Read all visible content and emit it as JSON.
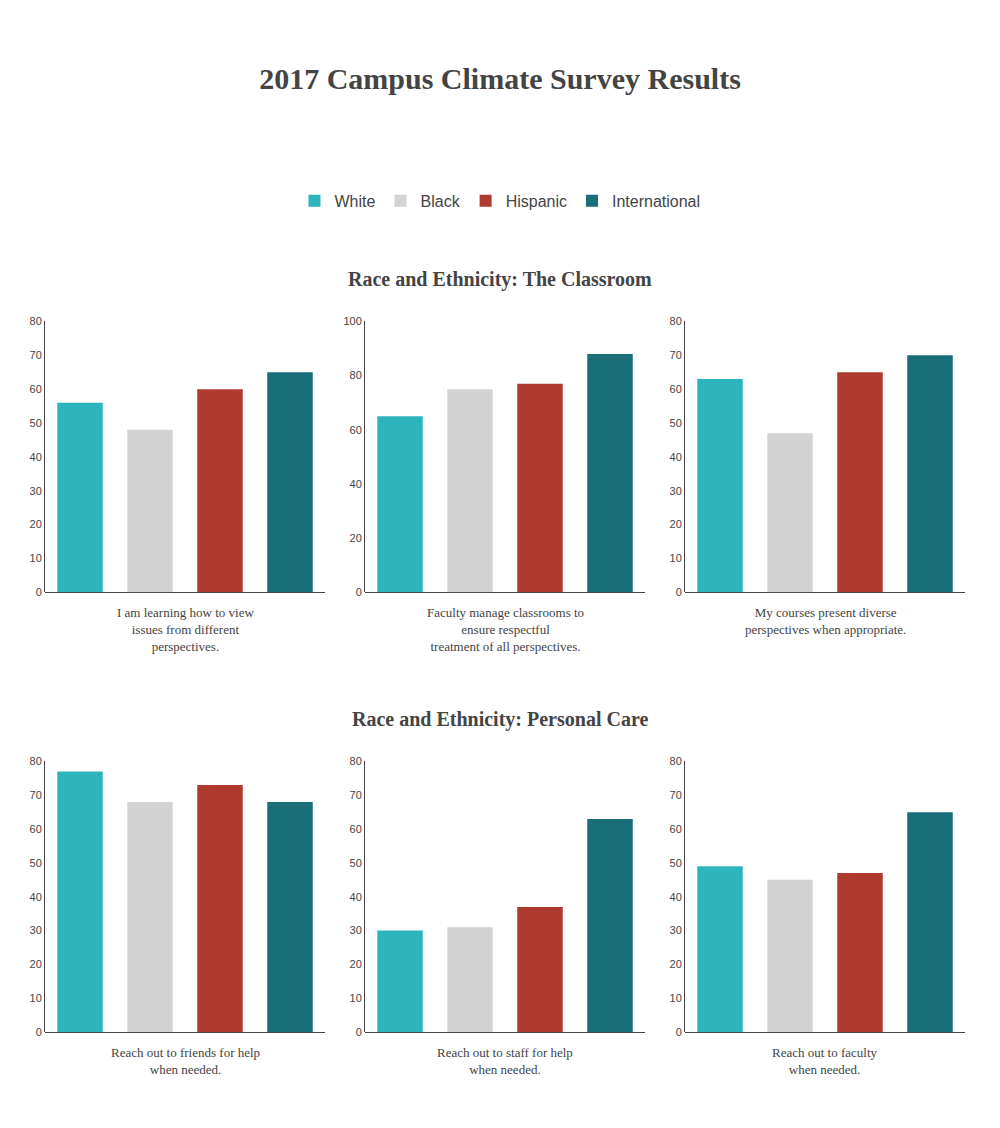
{
  "title": "2017 Campus Climate Survey Results",
  "chart_data": [
    {
      "type": "bar",
      "subtitle": "Race and Ethnicity: The Classroom",
      "title": "I am learning how to view\nissues from different\nperspectives.",
      "categories": [
        "White",
        "Black",
        "Hispanic",
        "International"
      ],
      "colors": [
        "#2db5bd",
        "#d3d3d3",
        "#b03a2e",
        "#1a6e78"
      ],
      "values": [
        56,
        48,
        60,
        65
      ],
      "ylim": [
        0,
        80
      ],
      "yticks": [
        0,
        10,
        20,
        30,
        40,
        50,
        60,
        70,
        80
      ],
      "grid": false,
      "tick_labels": "y",
      "legend": "top"
    },
    {
      "type": "bar",
      "title": "Faculty manage classrooms to\nensure respectful\ntreatment of all perspectives.",
      "categories": [
        "White",
        "Black",
        "Hispanic",
        "International"
      ],
      "colors": [
        "#2db5bd",
        "#d3d3d3",
        "#b03a2e",
        "#1a6e78"
      ],
      "values": [
        65,
        75,
        77,
        88
      ],
      "ylim": [
        0,
        100
      ],
      "yticks": [
        0,
        20,
        40,
        60,
        80,
        100
      ],
      "grid": false,
      "tick_labels": "y"
    },
    {
      "type": "bar",
      "title": "My courses present diverse\nperspectives when appropriate.",
      "categories": [
        "White",
        "Black",
        "Hispanic",
        "International"
      ],
      "colors": [
        "#2db5bd",
        "#d3d3d3",
        "#b03a2e",
        "#1a6e78"
      ],
      "values": [
        63,
        47,
        65,
        70
      ],
      "ylim": [
        0,
        80
      ],
      "yticks": [
        0,
        10,
        20,
        30,
        40,
        50,
        60,
        70,
        80
      ],
      "grid": false,
      "tick_labels": "y"
    },
    {
      "type": "bar",
      "subtitle": "Race and Ethnicity: Personal Care",
      "title": "Reach out to friends for help\nwhen needed.",
      "categories": [
        "White",
        "Black",
        "Hispanic",
        "International"
      ],
      "colors": [
        "#2db5bd",
        "#d3d3d3",
        "#b03a2e",
        "#1a6e78"
      ],
      "values": [
        77,
        68,
        73,
        68
      ],
      "ylim": [
        0,
        80
      ],
      "yticks": [
        0,
        10,
        20,
        30,
        40,
        50,
        60,
        70,
        80
      ],
      "grid": false,
      "tick_labels": "y"
    },
    {
      "type": "bar",
      "title": "Reach out to staff for help\nwhen needed.",
      "categories": [
        "White",
        "Black",
        "Hispanic",
        "International"
      ],
      "colors": [
        "#2db5bd",
        "#d3d3d3",
        "#b03a2e",
        "#1a6e78"
      ],
      "values": [
        30,
        31,
        37,
        63
      ],
      "ylim": [
        0,
        80
      ],
      "yticks": [
        0,
        10,
        20,
        30,
        40,
        50,
        60,
        70,
        80
      ],
      "grid": false,
      "tick_labels": "y"
    },
    {
      "type": "bar",
      "title": "Reach out to faculty\nwhen needed.",
      "categories": [
        "White",
        "Black",
        "Hispanic",
        "International"
      ],
      "colors": [
        "#2db5bd",
        "#d3d3d3",
        "#b03a2e",
        "#1a6e78"
      ],
      "values": [
        49,
        45,
        47,
        65
      ],
      "ylim": [
        0,
        80
      ],
      "yticks": [
        0,
        10,
        20,
        30,
        40,
        50,
        60,
        70,
        80
      ],
      "grid": false,
      "tick_labels": "y"
    }
  ]
}
